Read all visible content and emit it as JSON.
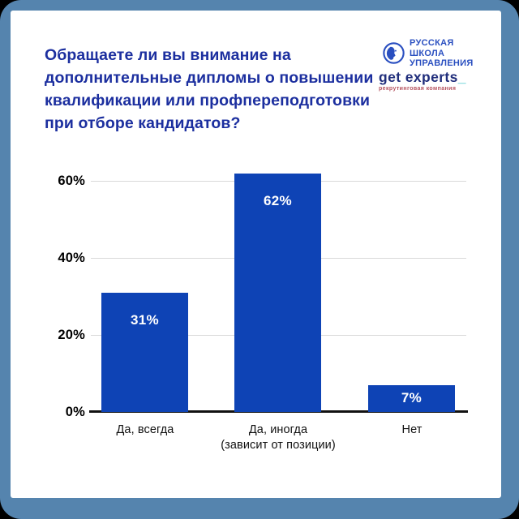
{
  "frame": {
    "border_color": "#5584ae",
    "card_background": "#ffffff"
  },
  "header": {
    "title_lines": [
      "Обращаете ли вы внимание на",
      "дополнительные дипломы о повышении",
      "квалификации или профпереподготовки",
      "при отборе кандидатов?"
    ],
    "title_color": "#1c2f9f"
  },
  "logos": {
    "rsu": {
      "lines": [
        "РУССКАЯ",
        "ШКОЛА",
        "УПРАВЛЕНИЯ"
      ],
      "color": "#2a4fc0"
    },
    "get_experts": {
      "name": "get experts",
      "underscore": "_",
      "tagline": "рекрутинговая компания",
      "name_color": "#1f2d7b",
      "underscore_color": "#3cc5c9",
      "tagline_color": "#b5535f"
    }
  },
  "chart_data": {
    "type": "bar",
    "title": "Обращаете ли вы внимание на дополнительные дипломы о повышении квалификации или профпереподготовки при отборе кандидатов?",
    "categories": [
      "Да, всегда",
      "Да, иногда\n(зависит от позиции)",
      "Нет"
    ],
    "values": [
      31,
      62,
      7
    ],
    "value_labels": [
      "31%",
      "62%",
      "7%"
    ],
    "ytick_labels": [
      "0%",
      "20%",
      "40%",
      "60%"
    ],
    "yticks": [
      0,
      20,
      40,
      60
    ],
    "ylim": [
      0,
      65
    ],
    "grid": true,
    "legend": "none",
    "bar_color": "#0e43b5",
    "value_label_color": "#ffffff",
    "gridline_color": "#d9d9d9",
    "axis_color": "#111111"
  }
}
